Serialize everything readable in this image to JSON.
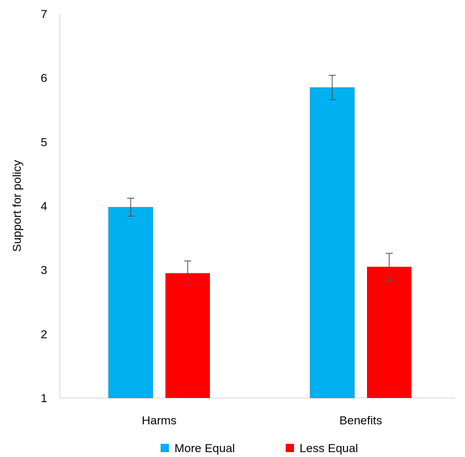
{
  "chart_data": {
    "type": "bar",
    "categories": [
      "Harms",
      "Benefits"
    ],
    "series": [
      {
        "name": "More Equal",
        "color": "#00B0F0",
        "values": [
          3.98,
          5.85
        ],
        "errors": [
          0.14,
          0.19
        ]
      },
      {
        "name": "Less Equal",
        "color": "#FF0000",
        "values": [
          2.95,
          3.05
        ],
        "errors": [
          0.19,
          0.21
        ]
      }
    ],
    "ylabel": "Support for policy",
    "xlabel": "",
    "ylim": [
      1,
      7
    ],
    "yticks": [
      "1",
      "2",
      "3",
      "4",
      "5",
      "6",
      "7"
    ],
    "grid": false,
    "legend_position": "bottom"
  }
}
